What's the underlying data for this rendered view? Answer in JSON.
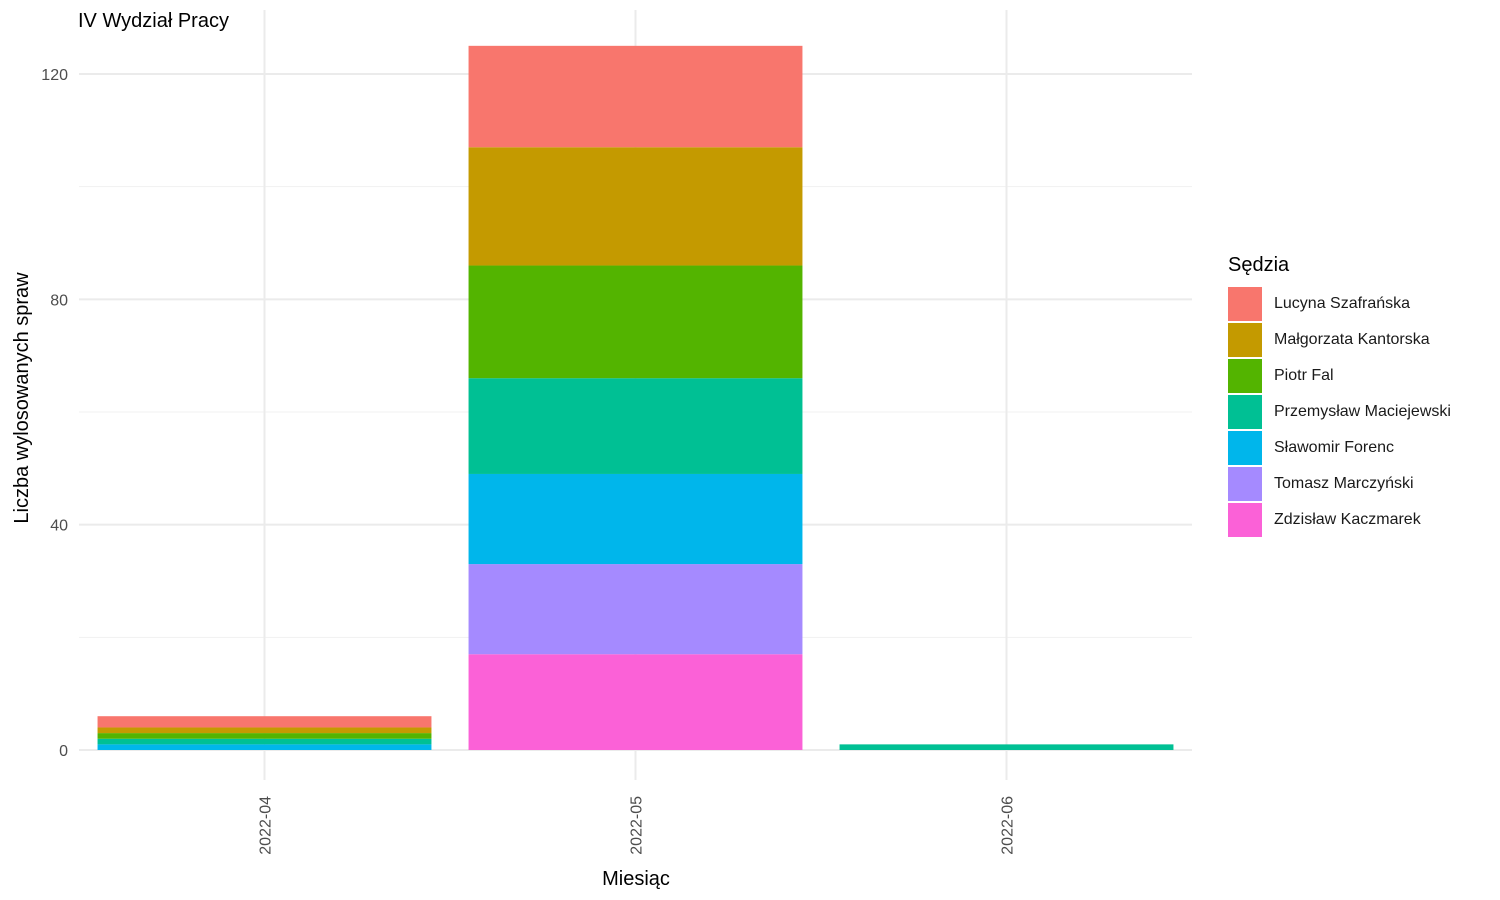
{
  "chart_data": {
    "type": "bar",
    "stacked": true,
    "title": "IV Wydział Pracy",
    "xlabel": "Miesiąc",
    "ylabel": "Liczba wylosowanych spraw",
    "categories": [
      "2022-04",
      "2022-05",
      "2022-06"
    ],
    "ylim": [
      -6,
      131
    ],
    "yticks": [
      0,
      40,
      80,
      120
    ],
    "grid": true,
    "legend_title": "Sędzia",
    "legend_position": "right",
    "series": [
      {
        "name": "Lucyna Szafrańska",
        "color": "#F8766D",
        "values": [
          2,
          18,
          0
        ]
      },
      {
        "name": "Małgorzata Kantorska",
        "color": "#C49A00",
        "values": [
          1,
          21,
          0
        ]
      },
      {
        "name": "Piotr Fal",
        "color": "#53B400",
        "values": [
          1,
          20,
          0
        ]
      },
      {
        "name": "Przemysław Maciejewski",
        "color": "#00C094",
        "values": [
          1,
          17,
          1
        ]
      },
      {
        "name": "Sławomir Forenc",
        "color": "#00B6EB",
        "values": [
          1,
          16,
          0
        ]
      },
      {
        "name": "Tomasz Marczyński",
        "color": "#A58AFF",
        "values": [
          0,
          16,
          0
        ]
      },
      {
        "name": "Zdzisław Kaczmarek",
        "color": "#FB61D7",
        "values": [
          0,
          17,
          0
        ]
      }
    ]
  }
}
